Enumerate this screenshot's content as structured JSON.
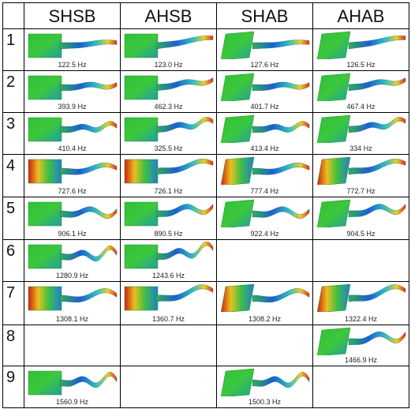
{
  "table": {
    "header": [
      "SHSB",
      "AHSB",
      "SHAB",
      "AHAB"
    ],
    "rows": [
      {
        "label": "1",
        "cells": [
          "122.5 Hz",
          "123.0 Hz",
          "127.6 Hz",
          "126.5 Hz"
        ]
      },
      {
        "label": "2",
        "cells": [
          "393.9 Hz",
          "462.3 Hz",
          "401.7 Hz",
          "467.4 Hz"
        ]
      },
      {
        "label": "3",
        "cells": [
          "410.4 Hz",
          "325.5 Hz",
          "413.4 Hz",
          "334 Hz"
        ]
      },
      {
        "label": "4",
        "cells": [
          "727.6 Hz",
          "726.1 Hz",
          "777.4 Hz",
          "772.7 Hz"
        ]
      },
      {
        "label": "5",
        "cells": [
          "906.1 Hz",
          "890.5 Hz",
          "922.4 Hz",
          "904.5 Hz"
        ]
      },
      {
        "label": "6",
        "cells": [
          "1280.9 Hz",
          "1243.6 Hz",
          null,
          null
        ]
      },
      {
        "label": "7",
        "cells": [
          "1308.1 Hz",
          "1360.7 Hz",
          "1308.2 Hz",
          "1322.4 Hz"
        ]
      },
      {
        "label": "8",
        "cells": [
          null,
          null,
          null,
          "1466.9 Hz"
        ]
      },
      {
        "label": "9",
        "cells": [
          "1560.9 Hz",
          null,
          "1500.3 Hz",
          null
        ]
      }
    ]
  }
}
